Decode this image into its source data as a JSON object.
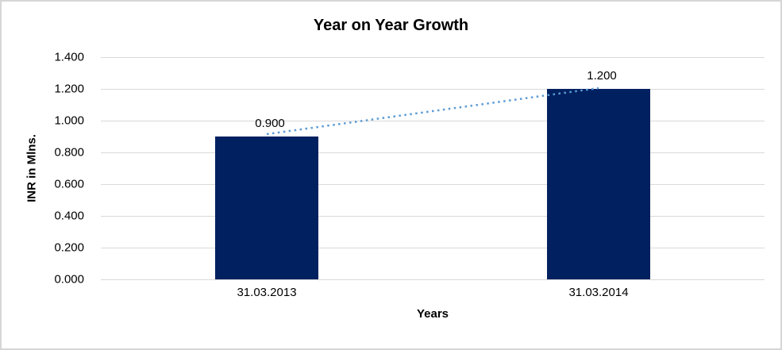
{
  "chart_data": {
    "type": "bar",
    "title": "Year on Year Growth",
    "xlabel": "Years",
    "ylabel": "INR in Mlns.",
    "categories": [
      "31.03.2013",
      "31.03.2014"
    ],
    "values": [
      0.9,
      1.2
    ],
    "data_labels": [
      "0.900",
      "1.200"
    ],
    "yticks": [
      "0.000",
      "0.200",
      "0.400",
      "0.600",
      "0.800",
      "1.000",
      "1.200",
      "1.400"
    ],
    "ylim": [
      0,
      1.4
    ],
    "grid": true,
    "legend": "none",
    "bar_color": "#002060",
    "trendline": {
      "style": "dotted",
      "color": "#5b9bd5"
    }
  }
}
